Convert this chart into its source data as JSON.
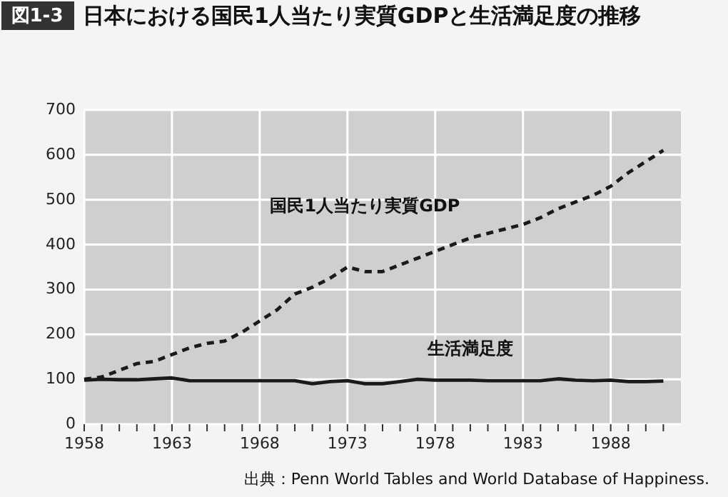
{
  "chart_data": {
    "type": "line",
    "title": "日本における国民1人当たり実質GDPと生活満足度の推移",
    "x": [
      1958,
      1959,
      1960,
      1961,
      1962,
      1963,
      1964,
      1965,
      1966,
      1967,
      1968,
      1969,
      1970,
      1971,
      1972,
      1973,
      1974,
      1975,
      1976,
      1977,
      1978,
      1979,
      1980,
      1981,
      1982,
      1983,
      1984,
      1985,
      1986,
      1987,
      1988,
      1989,
      1990,
      1991
    ],
    "series": [
      {
        "name": "国民1人当たり実質GDP",
        "color": "#1a1a1a",
        "line_style": "dashed",
        "values": [
          100,
          105,
          120,
          135,
          140,
          155,
          170,
          180,
          185,
          205,
          230,
          255,
          290,
          305,
          325,
          350,
          340,
          340,
          355,
          370,
          385,
          400,
          415,
          425,
          435,
          445,
          460,
          480,
          495,
          510,
          530,
          560,
          585,
          610
        ]
      },
      {
        "name": "生活満足度",
        "color": "#1a1a1a",
        "line_style": "solid",
        "values": [
          98,
          100,
          99,
          99,
          101,
          103,
          97,
          97,
          97,
          97,
          97,
          97,
          97,
          90,
          95,
          97,
          90,
          90,
          95,
          100,
          98,
          98,
          98,
          97,
          97,
          97,
          97,
          101,
          98,
          97,
          98,
          95,
          95,
          96
        ]
      }
    ],
    "xlim": [
      1958,
      1992
    ],
    "xticks": [
      1958,
      {
        "value": 1959,
        "label": null
      },
      {
        "value": 1960,
        "label": null
      },
      {
        "value": 1961,
        "label": null
      },
      {
        "value": 1962,
        "label": null
      },
      1963,
      {
        "value": 1964,
        "label": null
      },
      {
        "value": 1965,
        "label": null
      },
      {
        "value": 1966,
        "label": null
      },
      {
        "value": 1967,
        "label": null
      },
      1968,
      {
        "value": 1969,
        "label": null
      },
      {
        "value": 1970,
        "label": null
      },
      {
        "value": 1971,
        "label": null
      },
      {
        "value": 1972,
        "label": null
      },
      1973,
      {
        "value": 1974,
        "label": null
      },
      {
        "value": 1975,
        "label": null
      },
      {
        "value": 1976,
        "label": null
      },
      {
        "value": 1977,
        "label": null
      },
      1978,
      {
        "value": 1979,
        "label": null
      },
      {
        "value": 1980,
        "label": null
      },
      {
        "value": 1981,
        "label": null
      },
      {
        "value": 1982,
        "label": null
      },
      1983,
      {
        "value": 1984,
        "label": null
      },
      {
        "value": 1985,
        "label": null
      },
      {
        "value": 1986,
        "label": null
      },
      {
        "value": 1987,
        "label": null
      },
      1988,
      {
        "value": 1989,
        "label": null
      },
      {
        "value": 1990,
        "label": null
      },
      {
        "value": 1991,
        "label": null
      }
    ],
    "ylim": [
      0,
      700
    ],
    "yticks": [
      0,
      100,
      200,
      300,
      400,
      500,
      600,
      700
    ],
    "grid": true,
    "legend": false,
    "marker": "none",
    "annotations": [
      "図1-3",
      "出典：Penn World Tables and World Database of Happiness."
    ]
  }
}
